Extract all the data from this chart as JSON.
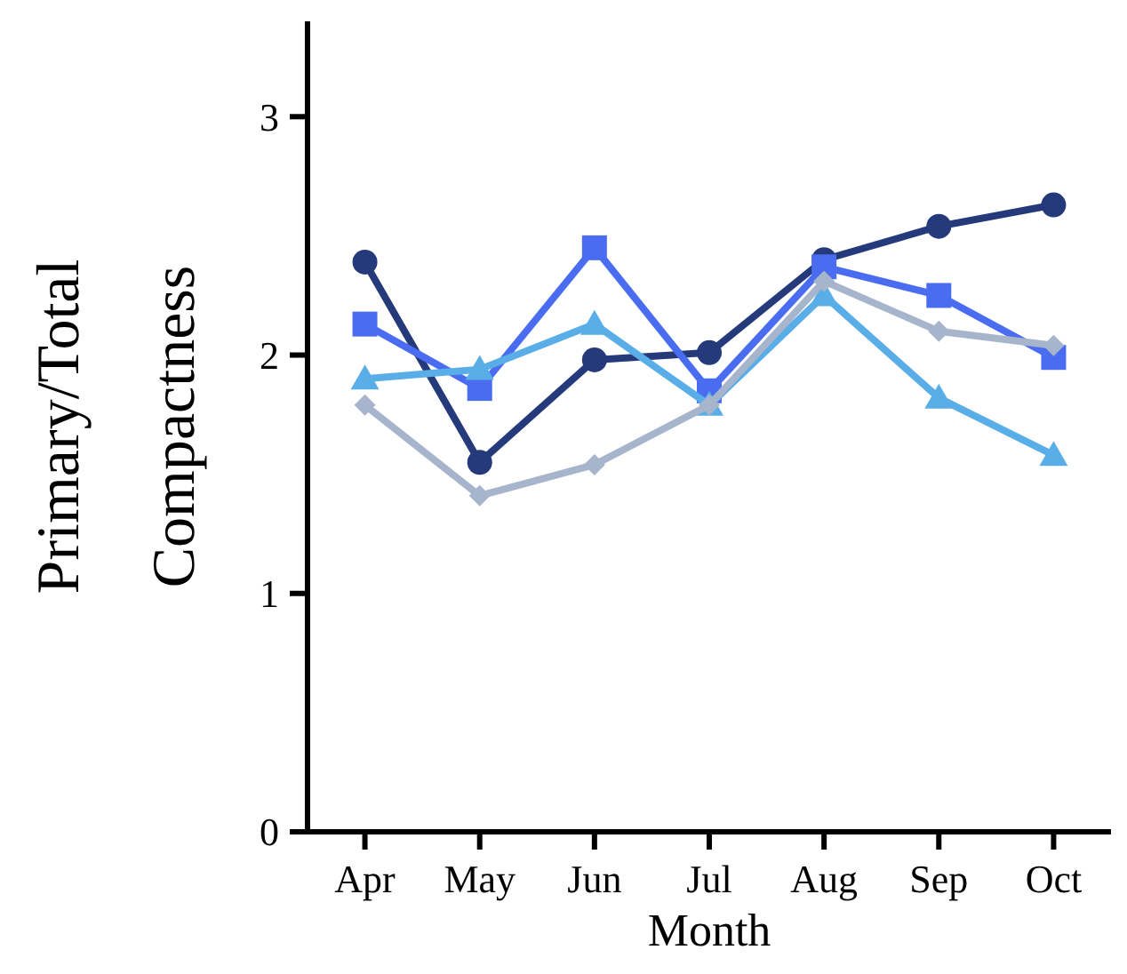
{
  "chart_data": {
    "type": "line",
    "xlabel": "Month",
    "ylabel": "Primary/Total Compactness",
    "categories": [
      "Apr",
      "May",
      "Jun",
      "Jul",
      "Aug",
      "Sep",
      "Oct"
    ],
    "series": [
      {
        "color": "#253a7a",
        "marker": "circle",
        "values": [
          2.39,
          1.55,
          1.98,
          2.01,
          2.4,
          2.54,
          2.63
        ]
      },
      {
        "color": "#4a6cf0",
        "marker": "square",
        "values": [
          2.13,
          1.86,
          2.45,
          1.85,
          2.37,
          2.25,
          1.99
        ]
      },
      {
        "color": "#5aaee8",
        "marker": "triangle",
        "values": [
          1.9,
          1.94,
          2.13,
          1.79,
          2.25,
          1.82,
          1.58
        ]
      },
      {
        "color": "#a6b4cc",
        "marker": "diamond",
        "values": [
          1.79,
          1.41,
          1.54,
          1.79,
          2.31,
          2.1,
          2.04
        ]
      }
    ],
    "ylim": [
      0,
      3.4
    ],
    "yticks": [
      0,
      1,
      2,
      3
    ],
    "grid": false
  }
}
